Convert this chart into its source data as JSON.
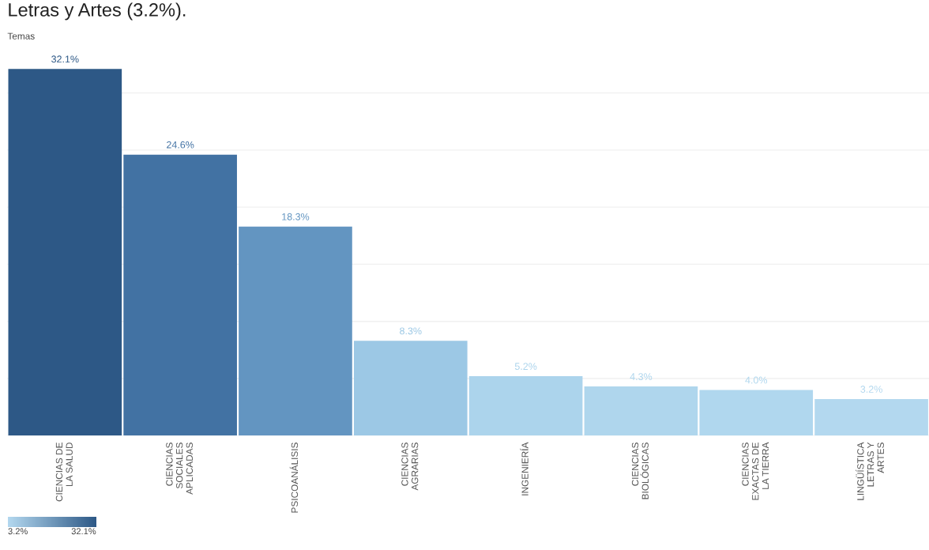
{
  "chart_data": {
    "type": "bar",
    "title": "Temas",
    "annotations": [
      "Letras y Artes (3.2%)."
    ],
    "categories": [
      "CIENCIAS DE\nLA SALUD",
      "CIENCIAS\nSOCIALES\nAPLICADAS",
      "PSICOANÁLISIS",
      "CIENCIAS\nAGRARIAS",
      "INGENIERÍA",
      "CIENCIAS\nBIOLÓGICAS",
      "CIENCIAS\nEXACTAS DE\nLA TIERRA",
      "LINGÜÍSTICA\nLETRAS Y\nARTES"
    ],
    "values": [
      32.1,
      24.6,
      18.3,
      8.3,
      5.2,
      4.3,
      4.0,
      3.2
    ],
    "colors": [
      "#2d5886",
      "#4272a3",
      "#6395c1",
      "#9cc8e5",
      "#acd4ec",
      "#afd6ed",
      "#b0d7ee",
      "#b3d8ef"
    ],
    "value_labels": [
      "32.1%",
      "24.6%",
      "18.3%",
      "8.3%",
      "5.2%",
      "4.3%",
      "4.0%",
      "3.2%"
    ],
    "yticks": [
      {
        "value": 0,
        "label": null
      },
      {
        "value": 5,
        "label": null
      },
      {
        "value": 10,
        "label": null
      },
      {
        "value": 15,
        "label": null
      },
      {
        "value": 20,
        "label": null
      },
      {
        "value": 25,
        "label": null
      },
      {
        "value": 30,
        "label": null
      }
    ],
    "grid": "y",
    "clim": [
      3.2,
      32.1
    ],
    "cticks": [
      {
        "value": 3.2,
        "label": "3.2%"
      },
      {
        "value": 32.1,
        "label": "32.1%"
      }
    ]
  }
}
